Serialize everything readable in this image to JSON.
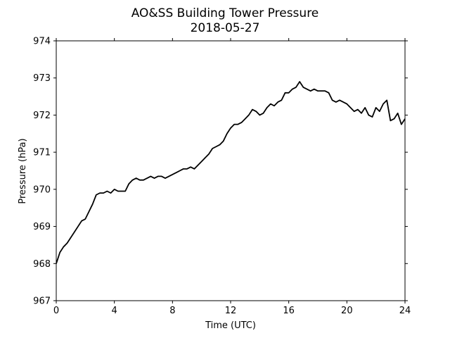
{
  "chart_data": {
    "type": "line",
    "title": "AO&SS Building Tower Pressure",
    "subtitle": "2018-05-27",
    "xlabel": "Time (UTC)",
    "ylabel": "Pressure (hPa)",
    "xlim": [
      0,
      24
    ],
    "ylim": [
      967,
      974
    ],
    "xticks": [
      0,
      4,
      8,
      12,
      16,
      20,
      24
    ],
    "yticks": [
      967,
      968,
      969,
      970,
      971,
      972,
      973,
      974
    ],
    "grid": false,
    "legend": "none",
    "line_color": "#000000",
    "series": [
      {
        "x": [
          0.0,
          0.25,
          0.5,
          0.75,
          1.0,
          1.25,
          1.5,
          1.75,
          2.0,
          2.25,
          2.5,
          2.75,
          3.0,
          3.25,
          3.5,
          3.75,
          4.0,
          4.25,
          4.5,
          4.75,
          5.0,
          5.25,
          5.5,
          5.75,
          6.0,
          6.25,
          6.5,
          6.75,
          7.0,
          7.25,
          7.5,
          7.75,
          8.0,
          8.25,
          8.5,
          8.75,
          9.0,
          9.25,
          9.5,
          9.75,
          10.0,
          10.25,
          10.5,
          10.75,
          11.0,
          11.25,
          11.5,
          11.75,
          12.0,
          12.25,
          12.5,
          12.75,
          13.0,
          13.25,
          13.5,
          13.75,
          14.0,
          14.25,
          14.5,
          14.75,
          15.0,
          15.25,
          15.5,
          15.75,
          16.0,
          16.25,
          16.5,
          16.75,
          17.0,
          17.25,
          17.5,
          17.75,
          18.0,
          18.25,
          18.5,
          18.75,
          19.0,
          19.25,
          19.5,
          19.75,
          20.0,
          20.25,
          20.5,
          20.75,
          21.0,
          21.25,
          21.5,
          21.75,
          22.0,
          22.25,
          22.5,
          22.75,
          23.0,
          23.25,
          23.5,
          23.75,
          24.0
        ],
        "values": [
          968.0,
          968.3,
          968.45,
          968.55,
          968.7,
          968.85,
          969.0,
          969.15,
          969.2,
          969.4,
          969.6,
          969.85,
          969.9,
          969.9,
          969.95,
          969.9,
          970.0,
          969.95,
          969.95,
          969.95,
          970.15,
          970.25,
          970.3,
          970.25,
          970.25,
          970.3,
          970.35,
          970.3,
          970.35,
          970.35,
          970.3,
          970.35,
          970.4,
          970.45,
          970.5,
          970.55,
          970.55,
          970.6,
          970.55,
          970.65,
          970.75,
          970.85,
          970.95,
          971.1,
          971.15,
          971.2,
          971.3,
          971.5,
          971.65,
          971.75,
          971.75,
          971.8,
          971.9,
          972.0,
          972.15,
          972.1,
          972.0,
          972.05,
          972.2,
          972.3,
          972.25,
          972.35,
          972.4,
          972.6,
          972.6,
          972.7,
          972.75,
          972.9,
          972.75,
          972.7,
          972.65,
          972.7,
          972.65,
          972.65,
          972.65,
          972.6,
          972.4,
          972.35,
          972.4,
          972.35,
          972.3,
          972.2,
          972.1,
          972.15,
          972.05,
          972.2,
          972.0,
          971.95,
          972.2,
          972.1,
          972.3,
          972.4,
          971.85,
          971.9,
          972.05,
          971.75,
          971.9
        ]
      }
    ]
  }
}
